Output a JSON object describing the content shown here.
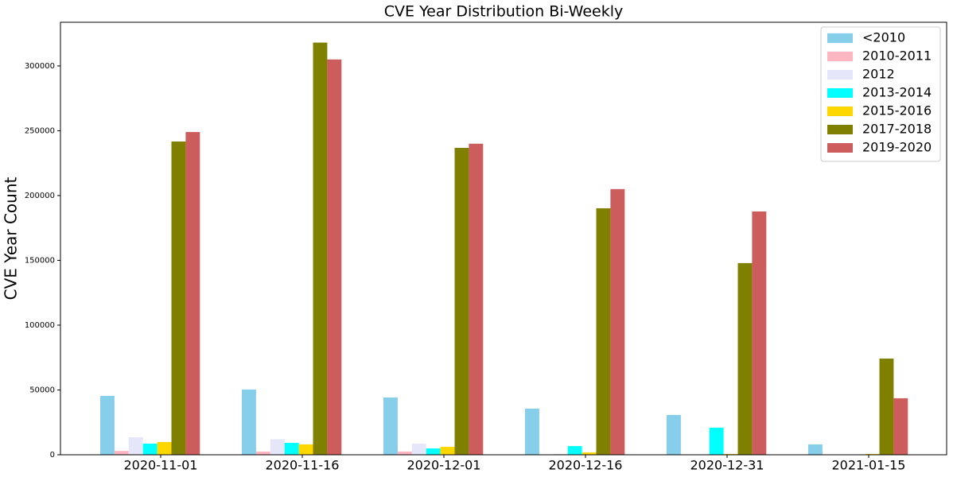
{
  "chart_data": {
    "type": "bar",
    "title": "CVE Year Distribution Bi-Weekly",
    "y_label": "CVE Year Count",
    "categories": [
      "2020-11-01",
      "2020-11-16",
      "2020-12-01",
      "2020-12-16",
      "2020-12-31",
      "2021-01-15"
    ],
    "series": [
      {
        "name": "<2010",
        "color": "#87ceeb",
        "values": [
          45400,
          50300,
          44200,
          35600,
          30700,
          8000
        ]
      },
      {
        "name": "2010-2011",
        "color": "#ffb6c1",
        "values": [
          3000,
          2500,
          2500,
          300,
          0,
          0
        ]
      },
      {
        "name": "2012",
        "color": "#e6e6fa",
        "values": [
          13500,
          12000,
          8600,
          600,
          0,
          0
        ]
      },
      {
        "name": "2013-2014",
        "color": "#00ffff",
        "values": [
          8600,
          9200,
          4900,
          6700,
          20900,
          0
        ]
      },
      {
        "name": "2015-2016",
        "color": "#ffd700",
        "values": [
          9800,
          8000,
          6100,
          1800,
          600,
          600
        ]
      },
      {
        "name": "2017-2018",
        "color": "#808000",
        "values": [
          241700,
          318000,
          236800,
          190200,
          147900,
          74200
        ]
      },
      {
        "name": "2019-2020",
        "color": "#cd5c5c",
        "values": [
          249000,
          305000,
          240000,
          205000,
          187700,
          43600
        ]
      }
    ],
    "ylim": [
      0,
      333700
    ],
    "yticks": [
      0,
      50000,
      100000,
      150000,
      200000,
      250000,
      300000
    ],
    "grid": false,
    "legend": "upper right"
  }
}
